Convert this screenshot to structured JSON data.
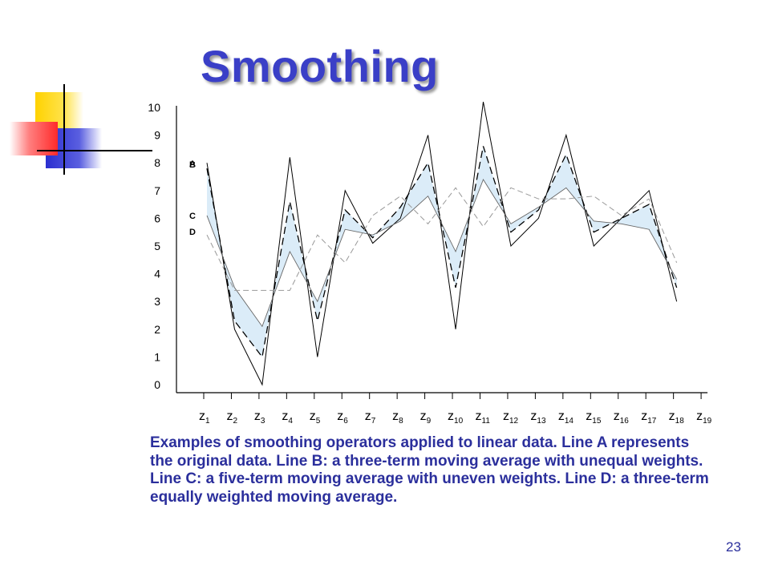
{
  "slide": {
    "title": "Smoothing",
    "caption": "Examples of smoothing operators applied to linear data. Line A represents the original data. Line B: a three-term moving average with unequal weights. Line C: a five-term moving average with uneven weights. Line D: a three-term equally weighted moving average.",
    "page_number": "23",
    "colors": {
      "title": "#3a3fc7",
      "caption": "#2b2f9c",
      "band": "#cfe6f5"
    }
  },
  "chart_data": {
    "type": "line",
    "categories": [
      "z1",
      "z2",
      "z3",
      "z4",
      "z5",
      "z6",
      "z7",
      "z8",
      "z9",
      "z10",
      "z11",
      "z12",
      "z13",
      "z14",
      "z15",
      "z16",
      "z17",
      "z18",
      "z19"
    ],
    "y_ticks": [
      0,
      1,
      2,
      3,
      4,
      5,
      6,
      7,
      8,
      9,
      10
    ],
    "ylim": [
      0,
      10
    ],
    "grid": false,
    "series": [
      {
        "name": "A",
        "style": "solid-thin",
        "values": [
          8,
          2,
          0,
          8.2,
          1,
          7,
          5.1,
          6,
          9,
          2,
          10.2,
          5,
          6,
          9,
          5,
          6,
          7,
          3,
          null
        ]
      },
      {
        "name": "B",
        "style": "dashed",
        "values": [
          7.8,
          2.3,
          1,
          6.6,
          2.3,
          6.3,
          5.3,
          6.4,
          8,
          3.5,
          8.6,
          5.5,
          6.3,
          8.3,
          5.5,
          6,
          6.5,
          3.5,
          null
        ]
      },
      {
        "name": "C",
        "style": "solid-gray",
        "values": [
          6.1,
          3.5,
          2.1,
          4.8,
          3,
          5.6,
          5.4,
          5.9,
          6.8,
          4.8,
          7.4,
          5.8,
          6.4,
          7.1,
          5.9,
          5.8,
          5.6,
          3.8,
          null
        ]
      },
      {
        "name": "D",
        "style": "dashed-light",
        "values": [
          5.4,
          3.4,
          3.4,
          3.4,
          5.4,
          4.4,
          6.1,
          6.8,
          5.8,
          7.1,
          5.7,
          7.1,
          6.7,
          6.7,
          6.8,
          6.1,
          6.7,
          4.4,
          null
        ]
      }
    ]
  }
}
